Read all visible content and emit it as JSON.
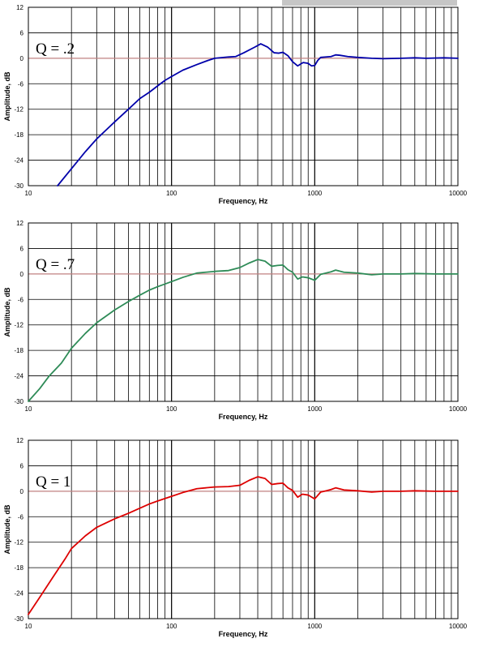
{
  "banner": {
    "color": "#c6c6c6"
  },
  "chart_data": [
    {
      "type": "line",
      "annotation": "Q = .2",
      "xlabel": "Frequency, Hz",
      "ylabel": "Amplitude, dB",
      "xscale": "log",
      "xlim": [
        10,
        10000
      ],
      "ylim": [
        -30,
        12
      ],
      "yticks": [
        -30,
        -24,
        -18,
        -12,
        -6,
        0,
        6,
        12
      ],
      "xtick_labels": [
        "10",
        "100",
        "1000",
        "10000"
      ],
      "grid": true,
      "reference_line": {
        "y": 0,
        "color": "#c08080"
      },
      "series": [
        {
          "color": "#0000aa",
          "points": [
            [
              16,
              -30
            ],
            [
              20,
              -26
            ],
            [
              25,
              -22
            ],
            [
              30,
              -19
            ],
            [
              40,
              -15
            ],
            [
              50,
              -12
            ],
            [
              60,
              -9.5
            ],
            [
              70,
              -8
            ],
            [
              80,
              -6.5
            ],
            [
              90,
              -5.2
            ],
            [
              100,
              -4.3
            ],
            [
              120,
              -2.8
            ],
            [
              150,
              -1.5
            ],
            [
              180,
              -0.5
            ],
            [
              200,
              0
            ],
            [
              250,
              0.3
            ],
            [
              280,
              0.4
            ],
            [
              320,
              1.3
            ],
            [
              380,
              2.6
            ],
            [
              420,
              3.4
            ],
            [
              470,
              2.6
            ],
            [
              520,
              1.3
            ],
            [
              560,
              1.2
            ],
            [
              600,
              1.4
            ],
            [
              650,
              0.6
            ],
            [
              700,
              -0.8
            ],
            [
              760,
              -1.8
            ],
            [
              830,
              -1.0
            ],
            [
              900,
              -1.2
            ],
            [
              950,
              -1.8
            ],
            [
              1000,
              -1.7
            ],
            [
              1050,
              -0.5
            ],
            [
              1100,
              0.2
            ],
            [
              1200,
              0.3
            ],
            [
              1300,
              0.4
            ],
            [
              1400,
              0.8
            ],
            [
              1500,
              0.7
            ],
            [
              1700,
              0.4
            ],
            [
              2000,
              0.2
            ],
            [
              2500,
              0
            ],
            [
              3000,
              -0.1
            ],
            [
              4000,
              0
            ],
            [
              5000,
              0.1
            ],
            [
              6000,
              0
            ],
            [
              8000,
              0.1
            ],
            [
              10000,
              0
            ]
          ]
        }
      ]
    },
    {
      "type": "line",
      "annotation": "Q = .7",
      "xlabel": "Frequency, Hz",
      "ylabel": "Amplitude, dB",
      "xscale": "log",
      "xlim": [
        10,
        10000
      ],
      "ylim": [
        -30,
        12
      ],
      "yticks": [
        -30,
        -24,
        -18,
        -12,
        -6,
        0,
        6,
        12
      ],
      "xtick_labels": [
        "10",
        "100",
        "1000",
        "10000"
      ],
      "grid": true,
      "reference_line": {
        "y": 0,
        "color": "#c08080"
      },
      "series": [
        {
          "color": "#2e8b57",
          "points": [
            [
              10,
              -30
            ],
            [
              12,
              -27
            ],
            [
              14,
              -24
            ],
            [
              17,
              -21
            ],
            [
              20,
              -17.5
            ],
            [
              25,
              -14
            ],
            [
              30,
              -11.5
            ],
            [
              40,
              -8.5
            ],
            [
              50,
              -6.5
            ],
            [
              60,
              -5
            ],
            [
              70,
              -3.8
            ],
            [
              80,
              -3
            ],
            [
              100,
              -1.8
            ],
            [
              120,
              -0.8
            ],
            [
              150,
              0.2
            ],
            [
              200,
              0.6
            ],
            [
              250,
              0.8
            ],
            [
              300,
              1.5
            ],
            [
              350,
              2.6
            ],
            [
              400,
              3.4
            ],
            [
              450,
              3.0
            ],
            [
              500,
              1.8
            ],
            [
              550,
              2.0
            ],
            [
              600,
              2.1
            ],
            [
              650,
              1.0
            ],
            [
              700,
              0.4
            ],
            [
              760,
              -1.2
            ],
            [
              820,
              -0.7
            ],
            [
              900,
              -0.9
            ],
            [
              1000,
              -1.5
            ],
            [
              1100,
              -0.1
            ],
            [
              1200,
              0.2
            ],
            [
              1300,
              0.5
            ],
            [
              1400,
              0.9
            ],
            [
              1600,
              0.4
            ],
            [
              2000,
              0.2
            ],
            [
              2500,
              -0.2
            ],
            [
              3000,
              0
            ],
            [
              4000,
              0
            ],
            [
              5000,
              0.1
            ],
            [
              7000,
              0
            ],
            [
              10000,
              0
            ]
          ]
        }
      ]
    },
    {
      "type": "line",
      "annotation": "Q = 1",
      "xlabel": "Frequency, Hz",
      "ylabel": "Amplitude, dB",
      "xscale": "log",
      "xlim": [
        10,
        10000
      ],
      "ylim": [
        -30,
        12
      ],
      "yticks": [
        -30,
        -24,
        -18,
        -12,
        -6,
        0,
        6,
        12
      ],
      "xtick_labels": [
        "10",
        "100",
        "1000",
        "10000"
      ],
      "grid": true,
      "reference_line": {
        "y": 0,
        "color": "#c08080"
      },
      "series": [
        {
          "color": "#dd0000",
          "points": [
            [
              10,
              -29
            ],
            [
              12,
              -25
            ],
            [
              15,
              -20
            ],
            [
              18,
              -16
            ],
            [
              20,
              -13.5
            ],
            [
              25,
              -10.5
            ],
            [
              30,
              -8.5
            ],
            [
              40,
              -6.5
            ],
            [
              50,
              -5.2
            ],
            [
              60,
              -4
            ],
            [
              70,
              -3
            ],
            [
              80,
              -2.3
            ],
            [
              100,
              -1.2
            ],
            [
              120,
              -0.3
            ],
            [
              150,
              0.6
            ],
            [
              200,
              1.0
            ],
            [
              250,
              1.1
            ],
            [
              300,
              1.4
            ],
            [
              350,
              2.6
            ],
            [
              400,
              3.4
            ],
            [
              450,
              3.0
            ],
            [
              500,
              1.6
            ],
            [
              550,
              1.8
            ],
            [
              600,
              1.9
            ],
            [
              650,
              0.8
            ],
            [
              700,
              0.2
            ],
            [
              760,
              -1.4
            ],
            [
              820,
              -0.7
            ],
            [
              900,
              -0.9
            ],
            [
              1000,
              -1.8
            ],
            [
              1100,
              -0.2
            ],
            [
              1200,
              0.1
            ],
            [
              1300,
              0.4
            ],
            [
              1400,
              0.8
            ],
            [
              1600,
              0.3
            ],
            [
              2000,
              0.1
            ],
            [
              2500,
              -0.2
            ],
            [
              3000,
              0
            ],
            [
              4000,
              0
            ],
            [
              5000,
              0.1
            ],
            [
              7000,
              0
            ],
            [
              10000,
              0
            ]
          ]
        }
      ]
    }
  ]
}
